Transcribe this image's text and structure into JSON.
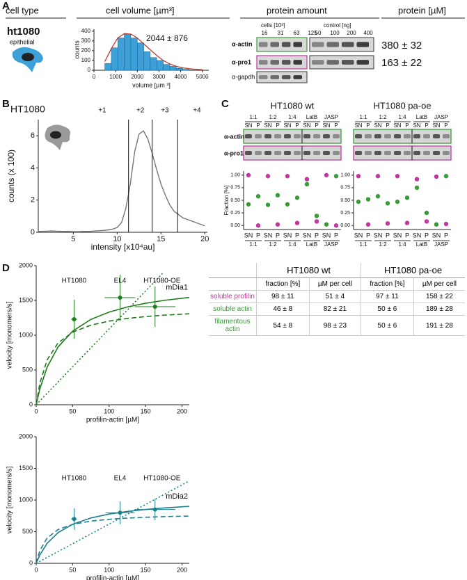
{
  "panels": [
    "A",
    "B",
    "C",
    "D"
  ],
  "panel_a": {
    "headers": [
      "cell type",
      "cell volume [µm³]",
      "protein amount",
      "protein [µM]"
    ],
    "cell_name": "ht1080",
    "cell_kind": "epithelial",
    "cells_label": "cells [10³]",
    "cells": [
      "16",
      "31",
      "63",
      "125"
    ],
    "control_label": "control [ng]",
    "control": [
      "50",
      "100",
      "200",
      "400"
    ],
    "blot_labels": [
      "α-actin",
      "α-pro1",
      "α-gapdh"
    ],
    "actin_conc": "380 ± 32",
    "profilin_conc": "163 ± 22"
  },
  "table": {
    "groups": [
      "HT1080 wt",
      "HT1080 pa-oe"
    ],
    "columns": [
      "fraction [%]",
      "µM per cell",
      "fraction [%]",
      "µM per cell"
    ],
    "rows": [
      {
        "label": "soluble profilin",
        "color": "#c0369d",
        "cells": [
          "98 ± 11",
          "51 ± 4",
          "97 ± 11",
          "158 ± 22"
        ]
      },
      {
        "label": "soluble actin",
        "color": "#3a9b3a",
        "cells": [
          "46 ± 8",
          "82 ± 21",
          "50 ± 6",
          "189 ± 28"
        ]
      },
      {
        "label": "filamentous actin",
        "color": "#3a9b3a",
        "cells": [
          "54 ± 8",
          "98 ± 23",
          "50 ± 6",
          "191 ± 28"
        ]
      }
    ]
  },
  "chart_data": [
    {
      "type": "histogram",
      "xlabel": "volume [µm ³]",
      "ylabel": "counts",
      "annotation": "2044 ± 876",
      "bins": [
        500,
        800,
        1100,
        1400,
        1700,
        2000,
        2300,
        2600,
        2900,
        3200,
        3500,
        3800,
        4100,
        4400
      ],
      "values": [
        70,
        230,
        330,
        370,
        330,
        280,
        190,
        130,
        100,
        60,
        40,
        20,
        10
      ],
      "color": "#3ea0d8",
      "fit": {
        "x": [
          500,
          800,
          1100,
          1400,
          1700,
          2000,
          2300,
          2600,
          2900,
          3200,
          3500,
          3800,
          4100,
          4400,
          5000
        ],
        "values": [
          90,
          220,
          330,
          375,
          370,
          330,
          270,
          210,
          150,
          100,
          65,
          40,
          25,
          15,
          5
        ],
        "color": "#c0392b"
      },
      "xlim": [
        0,
        5300
      ],
      "ylim": [
        0,
        420
      ],
      "xticks": [
        0,
        1000,
        2000,
        3000,
        4000,
        5000
      ],
      "yticks": [
        0,
        100,
        200,
        300,
        400
      ]
    },
    {
      "type": "line",
      "title": "HT1080",
      "xlabel": "intensity [x10⁴au]",
      "ylabel": "counts (x 100)",
      "x": [
        1,
        1.5,
        2,
        2.5,
        3,
        3.5,
        4,
        4.5,
        5,
        5.5,
        6,
        6.5,
        7,
        7.5,
        8,
        8.5,
        9,
        9.5,
        10,
        10.5,
        11,
        11.5,
        12,
        12.5,
        13,
        13.5,
        14,
        14.5,
        15,
        15.5,
        16,
        16.5,
        17,
        17.5,
        18,
        18.5,
        19,
        19.5,
        20
      ],
      "values": [
        0.05,
        0.06,
        0.07,
        0.08,
        0.07,
        0.06,
        0.05,
        0.05,
        0.04,
        0.04,
        0.05,
        0.05,
        0.06,
        0.08,
        0.1,
        0.12,
        0.15,
        0.2,
        0.3,
        0.6,
        1.5,
        3,
        5,
        6.1,
        6.3,
        5.8,
        4.9,
        3.9,
        3.0,
        2.3,
        1.7,
        1.3,
        1.1,
        0.9,
        0.8,
        0.7,
        0.6,
        0.5,
        0.4
      ],
      "color": "#777777",
      "gates": [
        11.3,
        14,
        16.9
      ],
      "gate_labels": [
        "+1",
        "+2",
        "+3",
        "+4"
      ],
      "xlim": [
        1,
        20.3
      ],
      "ylim": [
        0,
        7
      ],
      "xticks": [
        5,
        10,
        15,
        20
      ],
      "yticks": [
        0,
        2,
        4,
        6
      ]
    },
    {
      "type": "scatter",
      "title": "HT1080 wt",
      "ylabel": "Fraction [%]",
      "categories": [
        "SN",
        "P",
        "SN",
        "P",
        "SN",
        "P",
        "SN",
        "P",
        "SN",
        "P"
      ],
      "groups": [
        "1:1",
        "1:2",
        "1:4",
        "LatB",
        "JASP"
      ],
      "blot_labels": [
        "α-actin",
        "α-pro1"
      ],
      "ylim": [
        -0.08,
        1.08
      ],
      "yticks": [
        {
          "value": 0,
          "label": "0.00"
        },
        {
          "value": 0.25,
          "label": "0.25"
        },
        {
          "value": 0.5,
          "label": "0.50"
        },
        {
          "value": 0.75,
          "label": "0.75"
        },
        {
          "value": 1,
          "label": "1.00"
        }
      ],
      "series": [
        {
          "color": "#c0369d",
          "values": [
            1.0,
            0.0,
            0.98,
            0.02,
            0.98,
            0.05,
            0.92,
            0.08,
            1.0,
            0.0
          ]
        },
        {
          "color": "#3a9b3a",
          "values": [
            0.42,
            0.58,
            0.41,
            0.6,
            0.42,
            0.55,
            0.82,
            0.19,
            0.02,
            0.98
          ]
        }
      ]
    },
    {
      "type": "scatter",
      "title": "HT1080 pa-oe",
      "categories": [
        "SN",
        "P",
        "SN",
        "P",
        "SN",
        "P",
        "SN",
        "P",
        "SN",
        "P"
      ],
      "groups": [
        "1:1",
        "1:2",
        "1:4",
        "LatB",
        "JASP"
      ],
      "ylim": [
        -0.08,
        1.08
      ],
      "yticks": [
        {
          "value": 0,
          "label": "0.00"
        },
        {
          "value": 0.25,
          "label": "0.25"
        },
        {
          "value": 0.5,
          "label": "0.50"
        },
        {
          "value": 0.75,
          "label": "0.75"
        },
        {
          "value": 1,
          "label": "1.00"
        }
      ],
      "series": [
        {
          "color": "#c0369d",
          "values": [
            0.98,
            0.02,
            0.98,
            0.04,
            0.98,
            0.05,
            0.92,
            0.08,
            0.97,
            0.03
          ]
        },
        {
          "color": "#3a9b3a",
          "values": [
            0.47,
            0.52,
            0.58,
            0.44,
            0.47,
            0.55,
            0.75,
            0.25,
            0.02,
            0.98
          ]
        }
      ]
    },
    {
      "type": "kinetics",
      "xlabel": "profilin-actin [µM]",
      "ylabel": "velocity [monomers/s]",
      "color": "#1e7b1e",
      "x": [
        0,
        5,
        15,
        30,
        50,
        75,
        100,
        125,
        150,
        175,
        210
      ],
      "series": [
        {
          "name": "mDia1",
          "style": "solid",
          "values": [
            0,
            225,
            540,
            831,
            1059,
            1227,
            1333,
            1406,
            1459,
            1500,
            1543
          ]
        },
        {
          "style": "dashed",
          "values": [
            0,
            309,
            645,
            888,
            1044,
            1145,
            1203,
            1241,
            1268,
            1288,
            1308
          ]
        },
        {
          "style": "dotted",
          "values": [
            0,
            55,
            164,
            327,
            545,
            818,
            1090,
            1363,
            1635,
            1908,
            null
          ]
        }
      ],
      "points": {
        "labels": [
          "HT1080",
          "EL4",
          "HT1080-OE"
        ],
        "x": [
          52,
          115,
          163
        ],
        "values": [
          1230,
          1540,
          1410
        ],
        "xerr": [
          4,
          21,
          28
        ],
        "yerr": [
          280,
          330,
          290
        ]
      },
      "xlim": [
        0,
        210
      ],
      "ylim": [
        0,
        2000
      ],
      "xticks": [
        0,
        50,
        100,
        150,
        200
      ],
      "yticks": [
        0,
        500,
        1000,
        1500,
        2000
      ]
    },
    {
      "type": "kinetics",
      "xlabel": "profilin-actin [µM]",
      "ylabel": "velocity [monomers/s]",
      "color": "#1b7f8c",
      "x": [
        0,
        5,
        15,
        30,
        50,
        75,
        100,
        125,
        150,
        175,
        210
      ],
      "series": [
        {
          "name": "mDia2",
          "style": "solid",
          "values": [
            0,
            131,
            315,
            485,
            618,
            716,
            778,
            820,
            851,
            875,
            900
          ]
        },
        {
          "style": "dashed",
          "values": [
            0,
            200,
            400,
            533,
            615,
            667,
            696,
            714,
            727,
            737,
            746
          ]
        },
        {
          "style": "dotted",
          "values": [
            0,
            31,
            93,
            186,
            310,
            465,
            620,
            775,
            930,
            1085,
            1302
          ]
        }
      ],
      "points": {
        "labels": [
          "HT1080",
          "EL4",
          "HT1080-OE"
        ],
        "x": [
          52,
          115,
          163
        ],
        "values": [
          700,
          800,
          850
        ],
        "xerr": [
          4,
          20,
          28
        ],
        "yerr": [
          170,
          180,
          170
        ]
      },
      "xlim": [
        0,
        210
      ],
      "ylim": [
        0,
        2000
      ],
      "xticks": [
        0,
        50,
        100,
        150,
        200
      ],
      "yticks": [
        0,
        500,
        1000,
        1500,
        2000
      ]
    }
  ]
}
